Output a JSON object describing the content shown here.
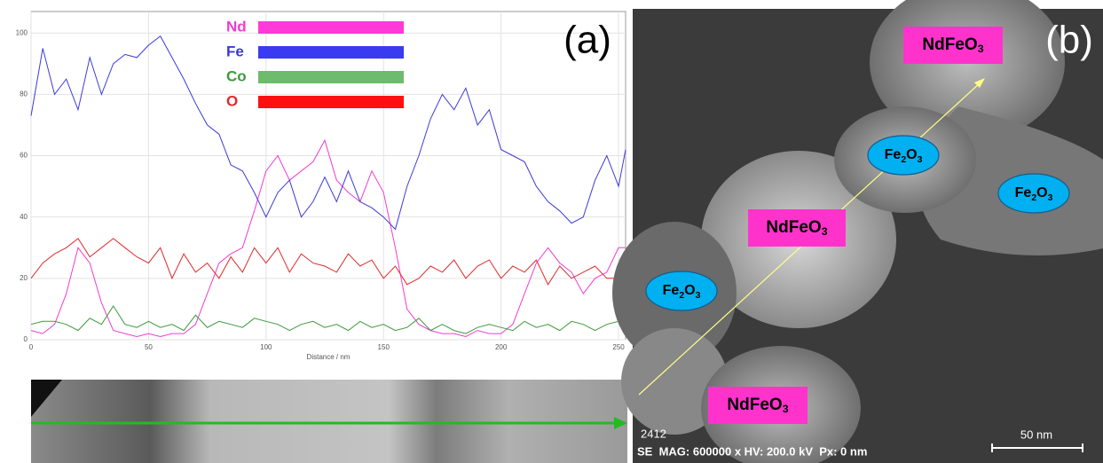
{
  "chart_data": {
    "type": "line",
    "panel_label": "(a)",
    "x_label": "Distance / nm",
    "x": [
      0,
      5,
      10,
      15,
      20,
      25,
      30,
      35,
      40,
      45,
      50,
      55,
      60,
      65,
      70,
      75,
      80,
      85,
      90,
      95,
      100,
      105,
      110,
      115,
      120,
      125,
      130,
      135,
      140,
      145,
      150,
      155,
      160,
      165,
      170,
      175,
      180,
      185,
      190,
      195,
      200,
      205,
      210,
      215,
      220,
      225,
      230,
      235,
      240,
      245,
      250,
      253
    ],
    "series": [
      {
        "name": "Nd",
        "color": "#f03cd2",
        "values": [
          3,
          2,
          5,
          15,
          30,
          25,
          12,
          3,
          2,
          1,
          2,
          1,
          2,
          2,
          5,
          15,
          25,
          28,
          30,
          42,
          55,
          60,
          52,
          55,
          58,
          65,
          52,
          48,
          45,
          55,
          48,
          30,
          10,
          5,
          3,
          2,
          2,
          1,
          3,
          2,
          2,
          5,
          15,
          25,
          30,
          25,
          22,
          15,
          20,
          22,
          30,
          30
        ]
      },
      {
        "name": "Fe",
        "color": "#3a3ad8",
        "values": [
          73,
          95,
          80,
          85,
          75,
          92,
          80,
          90,
          93,
          92,
          96,
          99,
          92,
          85,
          77,
          70,
          67,
          57,
          55,
          48,
          40,
          48,
          52,
          40,
          45,
          53,
          45,
          55,
          45,
          43,
          40,
          36,
          50,
          60,
          72,
          80,
          75,
          82,
          70,
          75,
          62,
          60,
          58,
          50,
          45,
          42,
          38,
          40,
          52,
          60,
          50,
          62
        ]
      },
      {
        "name": "Co",
        "color": "#3c9a3c",
        "values": [
          5,
          6,
          6,
          5,
          3,
          7,
          5,
          11,
          5,
          4,
          6,
          4,
          5,
          3,
          8,
          4,
          6,
          5,
          4,
          7,
          6,
          5,
          3,
          5,
          6,
          4,
          5,
          3,
          6,
          4,
          5,
          3,
          4,
          7,
          3,
          5,
          3,
          2,
          4,
          5,
          4,
          3,
          6,
          4,
          5,
          3,
          6,
          5,
          3,
          5,
          6,
          6
        ]
      },
      {
        "name": "O",
        "color": "#e02a2a",
        "values": [
          20,
          25,
          28,
          30,
          33,
          27,
          30,
          33,
          30,
          27,
          25,
          30,
          20,
          28,
          22,
          25,
          20,
          27,
          22,
          30,
          25,
          30,
          22,
          28,
          25,
          24,
          22,
          28,
          24,
          26,
          20,
          24,
          18,
          20,
          24,
          22,
          26,
          20,
          24,
          26,
          20,
          24,
          22,
          26,
          18,
          24,
          20,
          22,
          24,
          20,
          20,
          20
        ]
      }
    ],
    "legend_bar_colors": [
      "#ff3ad6",
      "#3a3af0",
      "#6dbb6d",
      "#ff1010"
    ],
    "xlim": [
      0,
      253
    ],
    "ylim": [
      0,
      107
    ],
    "xticks": [
      0,
      50,
      100,
      150,
      200,
      250
    ],
    "yticks": [
      0,
      20,
      40,
      60,
      80,
      100
    ],
    "grid": true
  },
  "image": {
    "panel_label": "(b)",
    "labels": [
      [
        "NdFeO",
        "3"
      ],
      [
        "Fe",
        "2",
        "O",
        "3"
      ],
      [
        "Fe",
        "2",
        "O",
        "3"
      ],
      [
        "NdFeO",
        "3"
      ],
      [
        "Fe",
        "2",
        "O",
        "3"
      ],
      [
        "NdFeO",
        "3"
      ]
    ],
    "info": "2412",
    "footer": "SE  MAG: 600000 x HV: 200.0 kV  Px: 0 nm",
    "scale_bar": "50 nm"
  }
}
